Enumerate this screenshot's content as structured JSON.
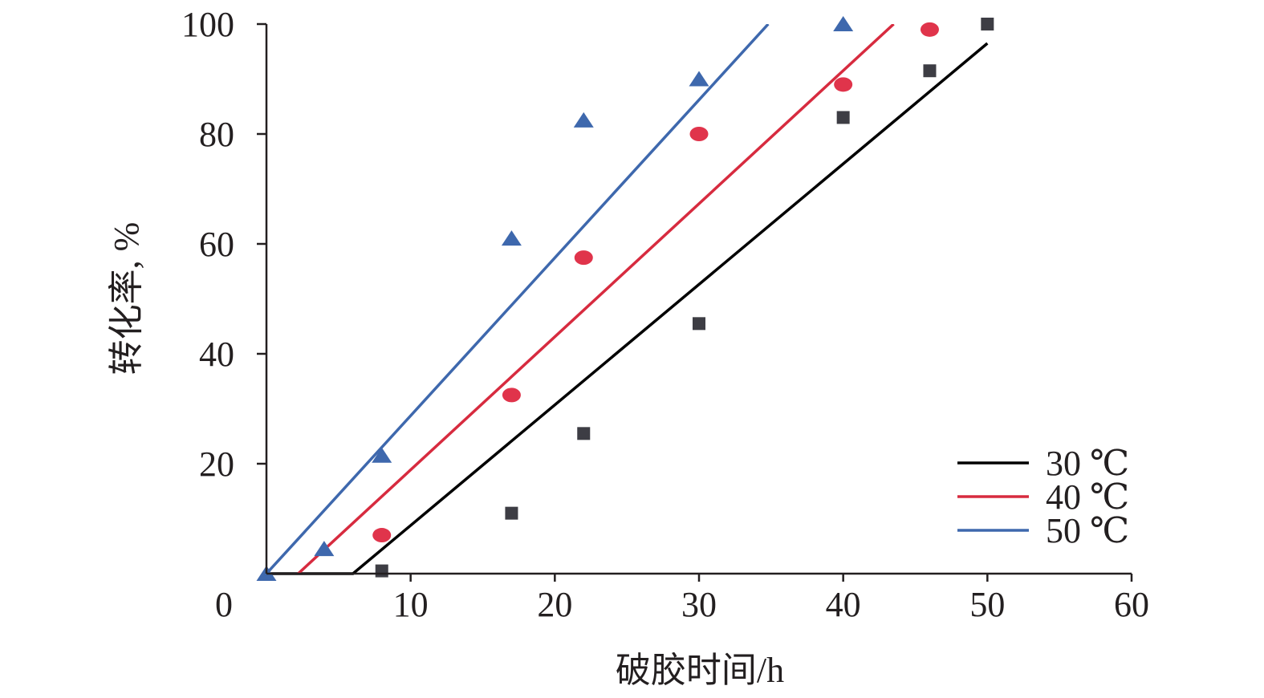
{
  "chart_data": {
    "type": "scatter",
    "title": "",
    "xlabel": "破胶时间/h",
    "ylabel": "转化率, %",
    "xlim": [
      0,
      60
    ],
    "ylim": [
      0,
      100
    ],
    "x_ticks": [
      "0",
      "10",
      "20",
      "30",
      "40",
      "50",
      "60"
    ],
    "y_ticks": [
      "20",
      "40",
      "60",
      "80",
      "100"
    ],
    "grid": false,
    "legend_position": "bottom-right",
    "series": [
      {
        "name": "30 ℃",
        "color": "#000000",
        "marker": "square",
        "marker_color": "#3d3d44",
        "points": [
          [
            8,
            0.5
          ],
          [
            17,
            11
          ],
          [
            22,
            25.5
          ],
          [
            30,
            45.5
          ],
          [
            40,
            83
          ],
          [
            46,
            91.5
          ],
          [
            50,
            100
          ]
        ],
        "fit_line": [
          [
            0,
            0
          ],
          [
            6,
            0
          ],
          [
            50,
            96.5
          ]
        ]
      },
      {
        "name": "40 ℃",
        "color": "#d72b3f",
        "marker": "circle",
        "marker_color": "#e0344b",
        "points": [
          [
            8,
            7
          ],
          [
            17,
            32.5
          ],
          [
            22,
            57.5
          ],
          [
            30,
            80
          ],
          [
            40,
            89
          ],
          [
            46,
            99
          ]
        ],
        "fit_line": [
          [
            2.2,
            0
          ],
          [
            43.5,
            100
          ]
        ]
      },
      {
        "name": "50 ℃",
        "color": "#3e68ad",
        "marker": "triangle",
        "marker_color": "#3e68ad",
        "points": [
          [
            0,
            0
          ],
          [
            4,
            4.5
          ],
          [
            8,
            21.5
          ],
          [
            17,
            61
          ],
          [
            22,
            82.5
          ],
          [
            30,
            90
          ],
          [
            40,
            100
          ]
        ],
        "fit_line": [
          [
            0,
            0
          ],
          [
            34.8,
            100
          ]
        ]
      }
    ]
  }
}
